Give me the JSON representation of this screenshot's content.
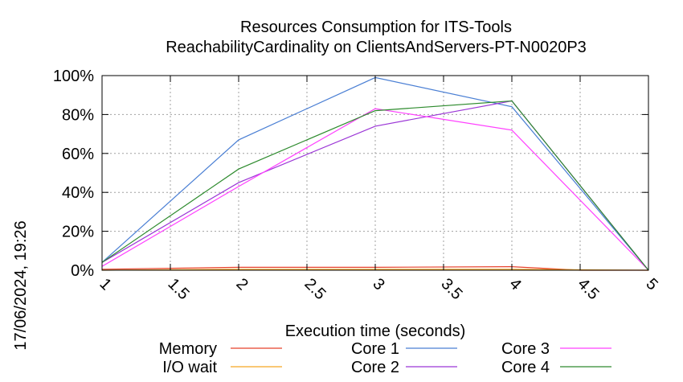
{
  "chart_data": {
    "type": "line",
    "title_line1": "Resources Consumption for ITS-Tools",
    "title_line2": "ReachabilityCardinality on ClientsAndServers-PT-N0020P3",
    "xlabel": "Execution time (seconds)",
    "ylabel": "",
    "timestamp": "17/06/2024, 19:26",
    "xlim": [
      1,
      5
    ],
    "ylim": [
      0,
      100
    ],
    "x_ticks": [
      "1",
      "1.5",
      "2",
      "2.5",
      "3",
      "3.5",
      "4",
      "4.5",
      "5"
    ],
    "y_ticks": [
      "0%",
      "20%",
      "40%",
      "60%",
      "80%",
      "100%"
    ],
    "grid": true,
    "legend_placement": "bottom",
    "series": [
      {
        "name": "Memory",
        "color": "#e8402a",
        "x": [
          1,
          2,
          3,
          4,
          4.5,
          5
        ],
        "y": [
          0.5,
          1.5,
          1.5,
          1.8,
          0,
          0
        ]
      },
      {
        "name": "I/O wait",
        "color": "#f5a623",
        "x": [
          1,
          2,
          3,
          4,
          5
        ],
        "y": [
          0,
          0.5,
          0.5,
          0.5,
          0
        ]
      },
      {
        "name": "Core 1",
        "color": "#4a7fd4",
        "x": [
          1,
          2,
          3,
          4,
          5
        ],
        "y": [
          4,
          67,
          99,
          84,
          0
        ]
      },
      {
        "name": "Core 2",
        "color": "#9b36d6",
        "x": [
          1,
          2,
          3,
          4,
          5
        ],
        "y": [
          4,
          45,
          74,
          87,
          0
        ]
      },
      {
        "name": "Core 3",
        "color": "#ff40ff",
        "x": [
          1,
          2,
          3,
          4,
          5
        ],
        "y": [
          2,
          43,
          83,
          72,
          0
        ]
      },
      {
        "name": "Core 4",
        "color": "#2e8b2e",
        "x": [
          1,
          2,
          3,
          4,
          5
        ],
        "y": [
          4,
          52,
          82,
          87,
          0
        ]
      }
    ]
  }
}
